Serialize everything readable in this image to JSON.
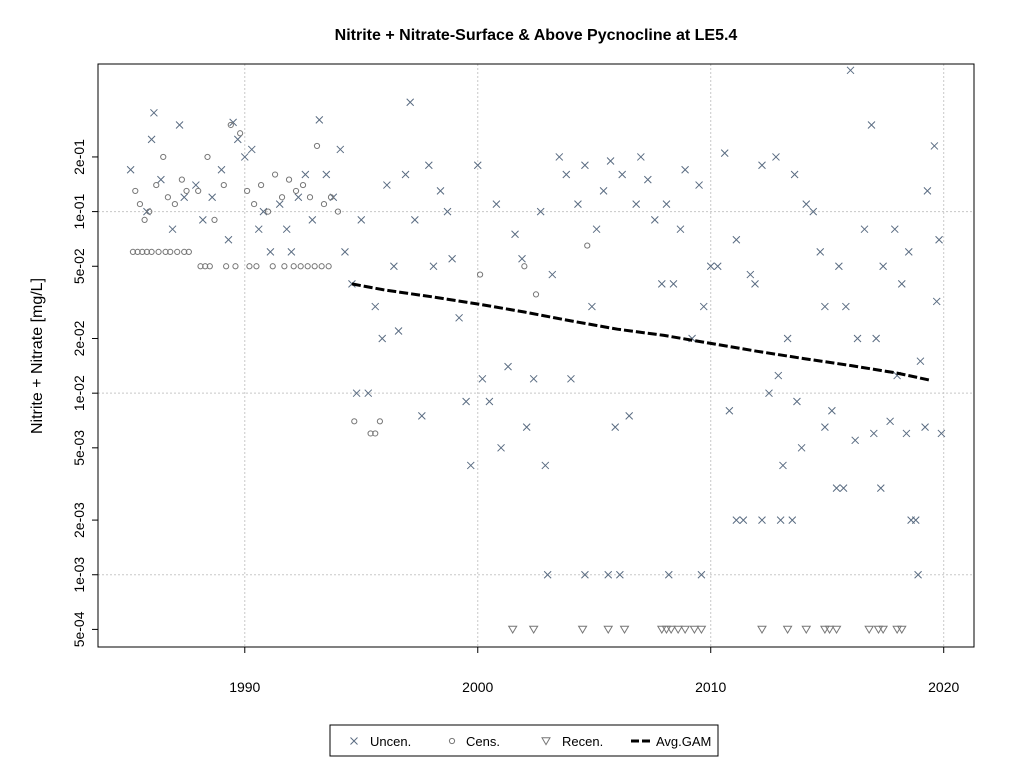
{
  "chart_data": {
    "type": "scatter",
    "title": "Nitrite + Nitrate-Surface & Above Pycnocline at LE5.4",
    "xlabel": "",
    "ylabel": "Nitrite + Nitrate [mg/L]",
    "y_scale": "log",
    "xlim": [
      1983.7,
      2021.3
    ],
    "ylim": [
      0.0004,
      0.65
    ],
    "x_ticks": [
      1990,
      2000,
      2010,
      2020
    ],
    "x_tick_labels": [
      "1990",
      "2000",
      "2010",
      "2020"
    ],
    "y_ticks": [
      0.0005,
      0.001,
      0.002,
      0.005,
      0.01,
      0.02,
      0.05,
      0.1,
      0.2
    ],
    "y_tick_labels": [
      "5e-04",
      "1e-03",
      "2e-03",
      "5e-03",
      "1e-02",
      "2e-02",
      "5e-02",
      "1e-01",
      "2e-01"
    ],
    "grid": true,
    "legend_position": "bottom",
    "legend": [
      "Uncen.",
      "Cens.",
      "Recen.",
      "Avg.GAM"
    ],
    "series": [
      {
        "name": "Uncen.",
        "marker": "x",
        "color": "#5a6c82",
        "x": [
          1985.1,
          1985.8,
          1986.0,
          1986.1,
          1986.4,
          1986.9,
          1987.2,
          1987.4,
          1987.9,
          1988.2,
          1988.6,
          1989.0,
          1989.3,
          1989.5,
          1989.7,
          1990.0,
          1990.3,
          1990.6,
          1990.8,
          1991.1,
          1991.5,
          1991.8,
          1992.0,
          1992.3,
          1992.6,
          1992.9,
          1993.2,
          1993.5,
          1993.8,
          1994.1,
          1994.3,
          1994.6,
          1994.8,
          1995.0,
          1995.3,
          1995.6,
          1995.9,
          1996.1,
          1996.4,
          1996.6,
          1996.9,
          1997.1,
          1997.3,
          1997.6,
          1997.9,
          1998.1,
          1998.4,
          1998.7,
          1998.9,
          1999.2,
          1999.5,
          1999.7,
          2000.0,
          2000.2,
          2000.5,
          2000.8,
          2001.0,
          2001.3,
          2001.6,
          2001.9,
          2002.1,
          2002.4,
          2002.7,
          2002.9,
          2003.2,
          2003.5,
          2003.8,
          2004.0,
          2004.3,
          2004.6,
          2004.9,
          2005.1,
          2005.4,
          2005.7,
          2005.9,
          2006.2,
          2006.5,
          2006.8,
          2007.0,
          2007.3,
          2007.6,
          2007.9,
          2008.1,
          2008.4,
          2008.7,
          2008.9,
          2009.2,
          2009.5,
          2009.7,
          2010.0,
          2010.3,
          2010.6,
          2010.8,
          2011.1,
          2011.4,
          2011.7,
          2011.9,
          2012.2,
          2012.5,
          2012.8,
          2013.0,
          2013.3,
          2013.6,
          2013.9,
          2014.1,
          2014.4,
          2014.7,
          2014.9,
          2015.2,
          2015.5,
          2015.8,
          2016.0,
          2016.3,
          2016.6,
          2016.9,
          2017.1,
          2017.4,
          2017.7,
          2017.9,
          2018.2,
          2018.5,
          2018.8,
          2019.0,
          2019.3,
          2019.6,
          2019.8
        ],
        "y": [
          0.17,
          0.1,
          0.25,
          0.35,
          0.15,
          0.08,
          0.3,
          0.12,
          0.14,
          0.09,
          0.12,
          0.17,
          0.07,
          0.31,
          0.25,
          0.2,
          0.22,
          0.08,
          0.1,
          0.06,
          0.11,
          0.08,
          0.06,
          0.12,
          0.16,
          0.09,
          0.32,
          0.16,
          0.12,
          0.22,
          0.06,
          0.04,
          0.01,
          0.09,
          0.01,
          0.03,
          0.02,
          0.14,
          0.05,
          0.022,
          0.16,
          0.4,
          0.09,
          0.0075,
          0.18,
          0.05,
          0.13,
          0.1,
          0.055,
          0.026,
          0.009,
          0.004,
          0.18,
          0.012,
          0.009,
          0.11,
          0.005,
          0.014,
          0.075,
          0.055,
          0.0065,
          0.012,
          0.1,
          0.004,
          0.045,
          0.2,
          0.16,
          0.012,
          0.11,
          0.18,
          0.03,
          0.08,
          0.13,
          0.19,
          0.0065,
          0.16,
          0.0075,
          0.11,
          0.2,
          0.15,
          0.09,
          0.04,
          0.11,
          0.04,
          0.08,
          0.17,
          0.02,
          0.14,
          0.03,
          0.05,
          0.05,
          0.21,
          0.008,
          0.07,
          0.002,
          0.045,
          0.04,
          0.18,
          0.01,
          0.2,
          0.002,
          0.02,
          0.16,
          0.005,
          0.11,
          0.1,
          0.06,
          0.03,
          0.008,
          0.05,
          0.03,
          0.6,
          0.02,
          0.08,
          0.3,
          0.02,
          0.05,
          0.007,
          0.08,
          0.04,
          0.06,
          0.002,
          0.015,
          0.13,
          0.23,
          0.07
        ],
        "extra_points": {
          "x": [
            2012.9,
            2013.7,
            2014.9,
            2015.4,
            2016.2,
            2017.3,
            2018.0,
            2018.4,
            2018.9,
            2019.2,
            2019.7,
            2019.9,
            2003.0,
            2004.6,
            2005.6,
            2006.1,
            2008.2,
            2009.6,
            2011.1,
            2012.2,
            2013.1,
            2013.5,
            2015.7,
            2017.0,
            2018.6
          ],
          "y": [
            0.0125,
            0.009,
            0.0065,
            0.003,
            0.0055,
            0.003,
            0.0125,
            0.006,
            0.001,
            0.0065,
            0.032,
            0.006,
            0.001,
            0.001,
            0.001,
            0.001,
            0.001,
            0.001,
            0.002,
            0.002,
            0.004,
            0.002,
            0.003,
            0.006,
            0.002
          ]
        }
      },
      {
        "name": "Cens.",
        "marker": "o",
        "color": "#5a6c82",
        "x": [
          1985.3,
          1985.5,
          1985.7,
          1985.9,
          1986.2,
          1986.5,
          1986.7,
          1987.0,
          1987.3,
          1987.5,
          1988.0,
          1988.4,
          1988.7,
          1989.1,
          1989.4,
          1989.8,
          1990.1,
          1990.4,
          1990.7,
          1991.0,
          1991.3,
          1991.6,
          1991.9,
          1992.2,
          1992.5,
          1992.8,
          1993.1,
          1993.4,
          1993.7,
          1994.0,
          1985.2,
          1985.4,
          1985.6,
          1985.8,
          1986.0,
          1986.3,
          1986.6,
          1986.8,
          1987.1,
          1987.4,
          1987.6,
          1988.1,
          1988.3,
          1988.5,
          1989.2,
          1989.6,
          1990.2,
          1990.5,
          1991.2,
          1991.7,
          1992.1,
          1992.4,
          1992.7,
          1993.0,
          1993.3,
          1993.6,
          1994.7,
          1995.4,
          1995.6,
          1995.8,
          2000.1,
          2002.0,
          2002.5,
          2004.7
        ],
        "y": [
          0.13,
          0.11,
          0.09,
          0.1,
          0.14,
          0.2,
          0.12,
          0.11,
          0.15,
          0.13,
          0.13,
          0.2,
          0.09,
          0.14,
          0.3,
          0.27,
          0.13,
          0.11,
          0.14,
          0.1,
          0.16,
          0.12,
          0.15,
          0.13,
          0.14,
          0.12,
          0.23,
          0.11,
          0.12,
          0.1,
          0.06,
          0.06,
          0.06,
          0.06,
          0.06,
          0.06,
          0.06,
          0.06,
          0.06,
          0.06,
          0.06,
          0.05,
          0.05,
          0.05,
          0.05,
          0.05,
          0.05,
          0.05,
          0.05,
          0.05,
          0.05,
          0.05,
          0.05,
          0.05,
          0.05,
          0.05,
          0.007,
          0.006,
          0.006,
          0.007,
          0.045,
          0.05,
          0.035,
          0.065
        ]
      },
      {
        "name": "Recen.",
        "marker": "triangle-down",
        "color": "#5a6c82",
        "x": [
          2001.5,
          2002.4,
          2004.5,
          2005.6,
          2006.3,
          2007.9,
          2008.1,
          2008.3,
          2008.6,
          2008.9,
          2009.3,
          2009.6,
          2012.2,
          2013.3,
          2014.1,
          2014.9,
          2015.1,
          2015.4,
          2016.8,
          2017.2,
          2017.4,
          2018.0,
          2018.2
        ],
        "y": [
          0.0005,
          0.0005,
          0.0005,
          0.0005,
          0.0005,
          0.0005,
          0.0005,
          0.0005,
          0.0005,
          0.0005,
          0.0005,
          0.0005,
          0.0005,
          0.0005,
          0.0005,
          0.0005,
          0.0005,
          0.0005,
          0.0005,
          0.0005,
          0.0005,
          0.0005,
          0.0005
        ]
      },
      {
        "name": "Avg.GAM",
        "marker": "dashed-line",
        "color": "#000000",
        "x": [
          1994.6,
          1996.0,
          1998.0,
          2000.0,
          2002.0,
          2004.0,
          2006.0,
          2008.0,
          2010.0,
          2012.0,
          2014.0,
          2016.0,
          2018.0,
          2019.4
        ],
        "y": [
          0.04,
          0.037,
          0.034,
          0.031,
          0.028,
          0.025,
          0.0225,
          0.0208,
          0.0188,
          0.017,
          0.0155,
          0.0142,
          0.0129,
          0.0118
        ]
      }
    ]
  }
}
